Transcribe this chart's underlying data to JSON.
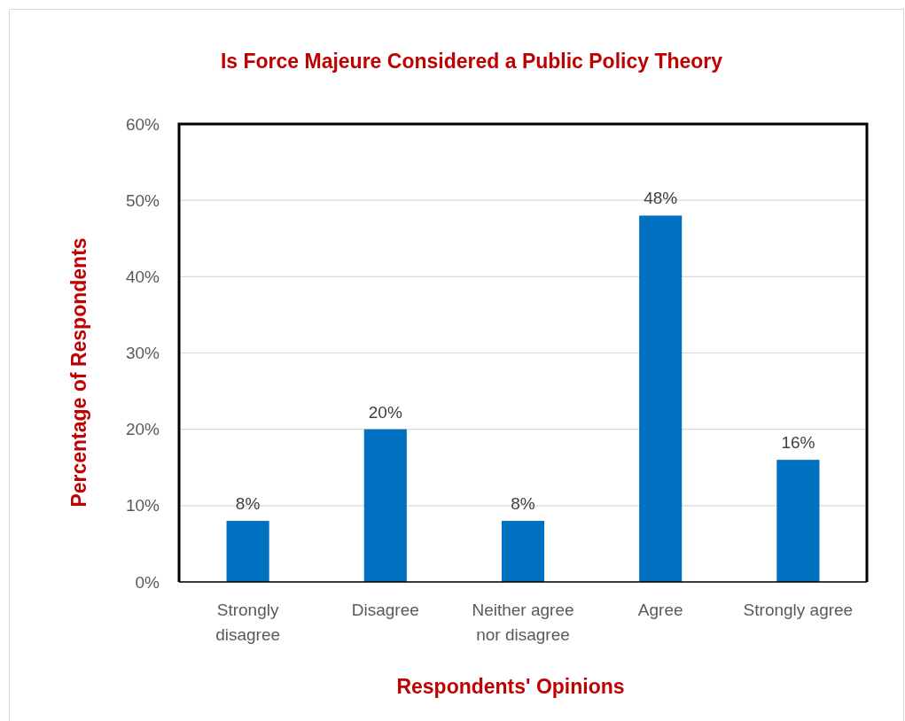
{
  "chart_data": {
    "type": "bar",
    "title": "Is Force Majeure Considered a Public Policy Theory",
    "xlabel": "Respondents' Opinions",
    "ylabel": "Percentage of Respondents",
    "categories": [
      "Strongly disagree",
      "Disagree",
      "Neither agree nor disagree",
      "Agree",
      "Strongly agree"
    ],
    "values": [
      8,
      20,
      8,
      48,
      16
    ],
    "value_labels": [
      "8%",
      "20%",
      "8%",
      "48%",
      "16%"
    ],
    "color": "#0070c0",
    "ylim": [
      0,
      60
    ],
    "yticks": [
      {
        "value": 0,
        "label": "0%"
      },
      {
        "value": 10,
        "label": "10%"
      },
      {
        "value": 20,
        "label": "20%"
      },
      {
        "value": 30,
        "label": "30%"
      },
      {
        "value": 40,
        "label": "40%"
      },
      {
        "value": 50,
        "label": "50%"
      },
      {
        "value": 60,
        "label": "60%"
      }
    ],
    "grid": "y"
  }
}
